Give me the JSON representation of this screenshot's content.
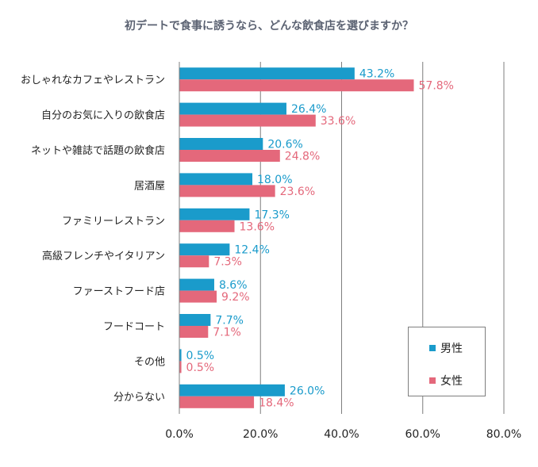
{
  "chart_data": {
    "type": "bar",
    "orientation": "horizontal",
    "title": "初デートで食事に誘うなら、どんな飲食店を選びますか？",
    "categories": [
      "おしゃれなカフェやレストラン",
      "自分のお気に入りの飲食店",
      "ネットや雑誌で話題の飲食店",
      "居酒屋",
      "ファミリーレストラン",
      "高級フレンチやイタリアン",
      "ファーストフード店",
      "フードコート",
      "その他",
      "分からない"
    ],
    "series": [
      {
        "name": "男性",
        "color": "#1a9bcb",
        "label_color": "#1a9bcb",
        "values": [
          43.2,
          26.4,
          20.6,
          18.0,
          17.3,
          12.4,
          8.6,
          7.7,
          0.5,
          26.0
        ]
      },
      {
        "name": "女性",
        "color": "#e4687b",
        "label_color": "#e4687b",
        "values": [
          57.8,
          33.6,
          24.8,
          23.6,
          13.6,
          7.3,
          9.2,
          7.1,
          0.5,
          18.4
        ]
      }
    ],
    "value_format_suffix": "%",
    "xlim": [
      0,
      80
    ],
    "xticks": [
      0,
      20,
      40,
      60,
      80
    ],
    "xtick_labels": [
      "0.0%",
      "20.0%",
      "40.0%",
      "60.0%",
      "80.0%"
    ],
    "grid": true,
    "legend_position": "bottom-right"
  }
}
